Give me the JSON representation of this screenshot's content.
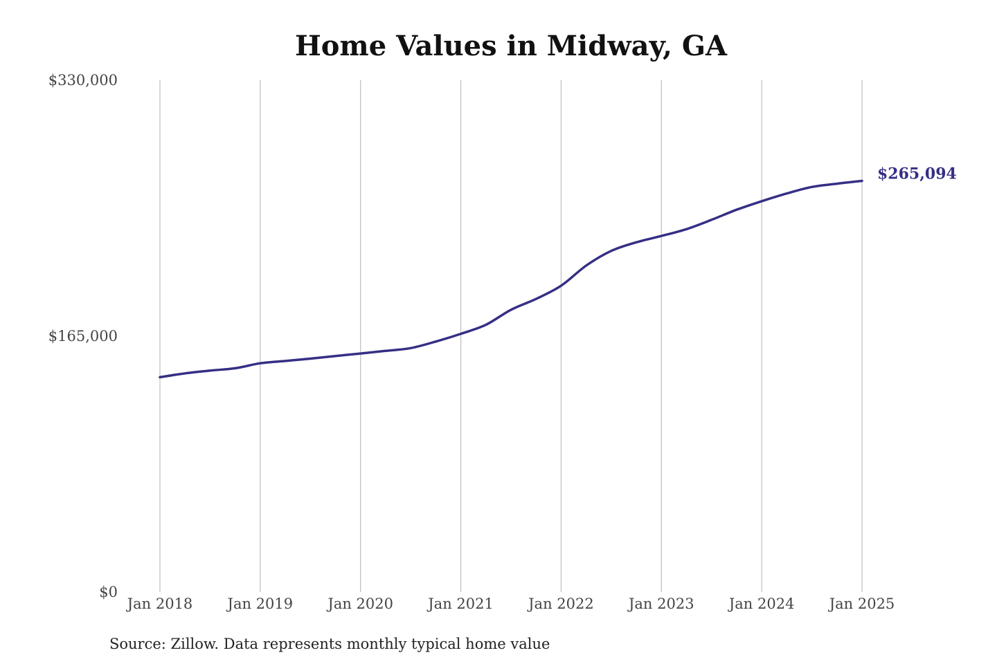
{
  "chart_data": {
    "type": "line",
    "title": "Home Values in Midway, GA",
    "source": "Source: Zillow. Data represents monthly typical home value",
    "xlabel": "",
    "ylabel": "",
    "ylim": [
      0,
      330000
    ],
    "yticks": [
      {
        "value": 0,
        "label": "$0"
      },
      {
        "value": 165000,
        "label": "$165,000"
      },
      {
        "value": 330000,
        "label": "$330,000"
      }
    ],
    "xticks": [
      {
        "year": 2018,
        "label": "Jan 2018"
      },
      {
        "year": 2019,
        "label": "Jan 2019"
      },
      {
        "year": 2020,
        "label": "Jan 2020"
      },
      {
        "year": 2021,
        "label": "Jan 2021"
      },
      {
        "year": 2022,
        "label": "Jan 2022"
      },
      {
        "year": 2023,
        "label": "Jan 2023"
      },
      {
        "year": 2024,
        "label": "Jan 2024"
      },
      {
        "year": 2025,
        "label": "Jan 2025"
      }
    ],
    "grid": "vertical",
    "line_color": "#352F85",
    "end_label": "$265,094",
    "series": [
      {
        "x": [
          "2018-01",
          "2018-04",
          "2018-07",
          "2018-10",
          "2019-01",
          "2019-04",
          "2019-07",
          "2019-10",
          "2020-01",
          "2020-04",
          "2020-07",
          "2020-10",
          "2021-01",
          "2021-04",
          "2021-07",
          "2021-10",
          "2022-01",
          "2022-04",
          "2022-07",
          "2022-10",
          "2023-01",
          "2023-04",
          "2023-07",
          "2023-10",
          "2024-01",
          "2024-04",
          "2024-07",
          "2024-10",
          "2025-01"
        ],
        "values": [
          138500,
          141000,
          142800,
          144300,
          147500,
          149000,
          150500,
          152200,
          153800,
          155500,
          157300,
          161500,
          166500,
          172300,
          182000,
          189000,
          197500,
          210500,
          220000,
          225500,
          229600,
          234000,
          240000,
          246500,
          252000,
          257000,
          261200,
          263300,
          265094
        ]
      }
    ]
  }
}
